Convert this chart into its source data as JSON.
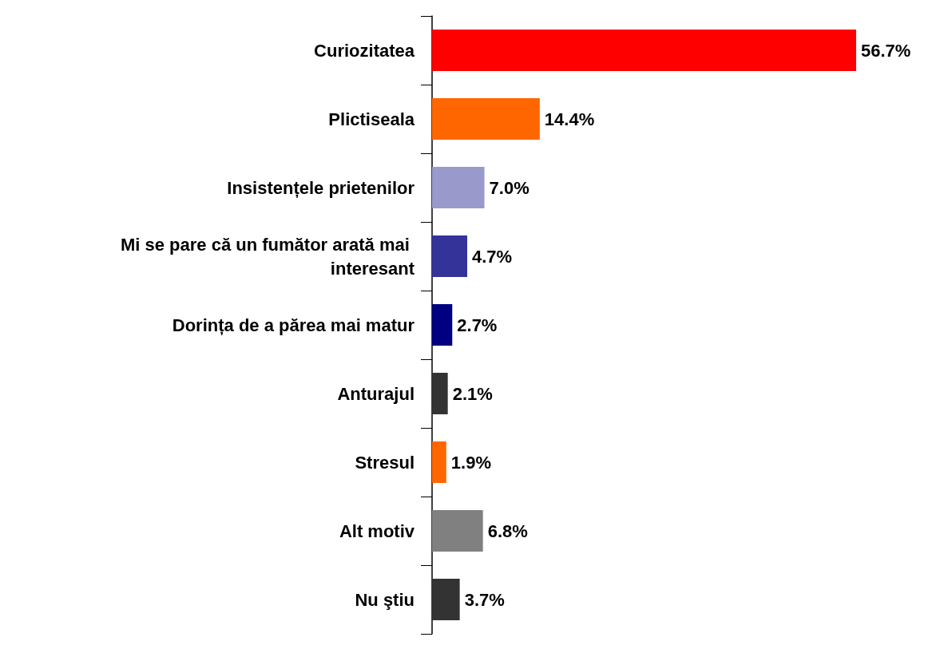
{
  "chart_data": {
    "type": "bar",
    "orientation": "horizontal",
    "categories": [
      "Curiozitatea",
      "Plictiseala",
      "Insistențele prietenilor",
      "Mi se pare că un fumător arată mai interesant",
      "Dorința de a părea mai matur",
      "Anturajul",
      "Stresul",
      "Alt motiv",
      "Nu ştiu"
    ],
    "values": [
      56.7,
      14.4,
      7.0,
      4.7,
      2.7,
      2.1,
      1.9,
      6.8,
      3.7
    ],
    "value_labels": [
      "56.7%",
      "14.4%",
      "7.0%",
      "4.7%",
      "2.7%",
      "2.1%",
      "1.9%",
      "6.8%",
      "3.7%"
    ],
    "colors": [
      "#ff0000",
      "#ff6600",
      "#9999cc",
      "#333399",
      "#000080",
      "#333333",
      "#ff6600",
      "#808080",
      "#333333"
    ]
  }
}
